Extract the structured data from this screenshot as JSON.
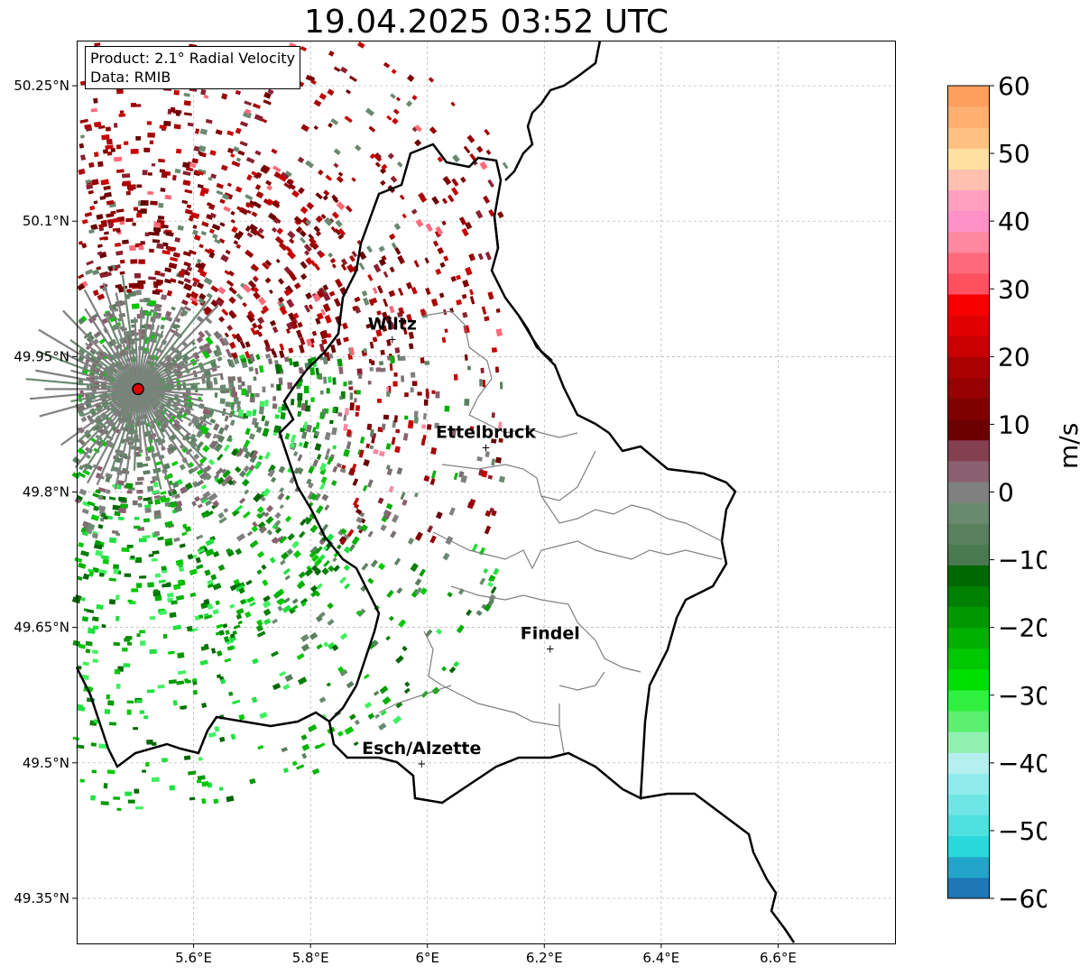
{
  "title": "19.04.2025 03:52 UTC",
  "info_box": {
    "product": "Product: 2.1° Radial Velocity",
    "source": "Data: RMIB"
  },
  "map": {
    "lon_range": [
      5.4,
      6.8
    ],
    "lat_range": [
      49.3,
      50.3
    ],
    "lon_ticks": [
      {
        "value": 5.6,
        "label": "5.6°E"
      },
      {
        "value": 5.8,
        "label": "5.8°E"
      },
      {
        "value": 6.0,
        "label": "6°E"
      },
      {
        "value": 6.2,
        "label": "6.2°E"
      },
      {
        "value": 6.4,
        "label": "6.4°E"
      },
      {
        "value": 6.6,
        "label": "6.6°E"
      }
    ],
    "lat_ticks": [
      {
        "value": 50.25,
        "label": "50.25°N"
      },
      {
        "value": 50.1,
        "label": "50.1°N"
      },
      {
        "value": 49.95,
        "label": "49.95°N"
      },
      {
        "value": 49.8,
        "label": "49.8°N"
      },
      {
        "value": 49.65,
        "label": "49.65°N"
      },
      {
        "value": 49.5,
        "label": "49.5°N"
      },
      {
        "value": 49.35,
        "label": "49.35°N"
      }
    ],
    "radar_site": {
      "lon": 5.505,
      "lat": 49.914
    },
    "cities": [
      {
        "name": "Wiltz",
        "lon": 5.94,
        "lat": 49.97
      },
      {
        "name": "Ettelbruck",
        "lon": 6.1,
        "lat": 49.85
      },
      {
        "name": "Findel",
        "lon": 6.21,
        "lat": 49.627
      },
      {
        "name": "Esch/Alzette",
        "lon": 5.99,
        "lat": 49.5
      }
    ]
  },
  "colorbar": {
    "min": -60,
    "max": 60,
    "ticks": [
      {
        "value": 60,
        "label": "60"
      },
      {
        "value": 50,
        "label": "50"
      },
      {
        "value": 40,
        "label": "40"
      },
      {
        "value": 30,
        "label": "30"
      },
      {
        "value": 20,
        "label": "20"
      },
      {
        "value": 10,
        "label": "10"
      },
      {
        "value": 0,
        "label": "0"
      },
      {
        "value": -10,
        "label": "−10"
      },
      {
        "value": -20,
        "label": "−20"
      },
      {
        "value": -30,
        "label": "−30"
      },
      {
        "value": -40,
        "label": "−40"
      },
      {
        "value": -50,
        "label": "−50"
      },
      {
        "value": -60,
        "label": "−60"
      }
    ],
    "unit": "m/s",
    "colors": [
      "#1f77b4",
      "#22a5c8",
      "#2ad8dc",
      "#4ee0e0",
      "#6ee6e6",
      "#90ecec",
      "#b4f0f0",
      "#90f0b0",
      "#5cf070",
      "#30f040",
      "#00e000",
      "#00c800",
      "#00b000",
      "#009800",
      "#008000",
      "#006800",
      "#4a7a50",
      "#5a8060",
      "#6a8a70",
      "#808080",
      "#8a6070",
      "#844050",
      "#6a0000",
      "#800000",
      "#960000",
      "#aa0000",
      "#c80000",
      "#e00000",
      "#f80000",
      "#ff5060",
      "#ff6a7a",
      "#ff88a0",
      "#ff90c8",
      "#ffa0c0",
      "#ffc0b0",
      "#ffe0a0",
      "#ffc080",
      "#ffb070",
      "#ffa060"
    ]
  }
}
